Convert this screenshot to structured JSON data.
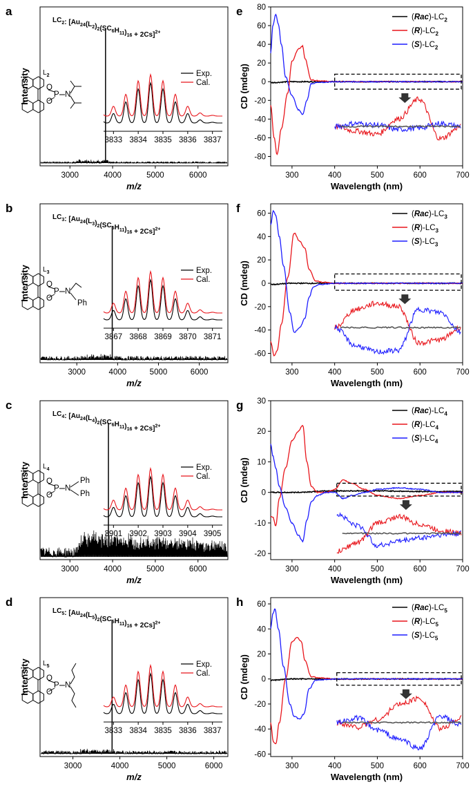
{
  "chart_data": [
    {
      "panel": "a",
      "type": "line",
      "kind": "ms",
      "title_prefix": "LC",
      "title_sub": "2",
      "title_body": ": [Au",
      "title_sub2": "24",
      "title_rest": "(L",
      "title_sub3": "2",
      "title_rest2": ")",
      "title_sub4": "2",
      "title_rest3": "(SC",
      "title_sub5": "6",
      "title_rest4": "H",
      "title_sub6": "11",
      "title_rest5": ")",
      "title_sub7": "16",
      "title_rest6": " + 2Cs]",
      "title_sup": "2+",
      "ligand_label": "L",
      "ligand_sub": "2",
      "xlabel": "m/z",
      "ylabel": "Intensity",
      "xlim": [
        2300,
        6700
      ],
      "xticks": [
        3000,
        4000,
        5000,
        6000
      ],
      "peak_x": 3834,
      "noise_level": 0.01,
      "hump": false,
      "inset_xticks": [
        3833,
        3834,
        3835,
        3836,
        3837
      ],
      "inset_xlim": [
        3832.6,
        3837.4
      ],
      "inset_legend": [
        "Exp.",
        "Cal."
      ]
    },
    {
      "panel": "b",
      "type": "line",
      "kind": "ms",
      "title_sub": "3",
      "title_sub3": "3",
      "ligand_label": "L",
      "ligand_sub": "3",
      "ligand_groups": [
        "Ph"
      ],
      "xlabel": "m/z",
      "ylabel": "Intensity",
      "xlim": [
        2100,
        6700
      ],
      "xticks": [
        3000,
        4000,
        5000,
        6000
      ],
      "peak_x": 3868,
      "noise_level": 0.025,
      "hump": false,
      "inset_xticks": [
        3867,
        3868,
        3869,
        3870,
        3871
      ],
      "inset_xlim": [
        3866.6,
        3871.4
      ],
      "inset_legend": [
        "Exp.",
        "Cal."
      ]
    },
    {
      "panel": "c",
      "type": "line",
      "kind": "ms",
      "title_sub": "4",
      "title_sub3": "4",
      "ligand_label": "L",
      "ligand_sub": "4",
      "ligand_groups": [
        "Ph",
        "Ph"
      ],
      "xlabel": "m/z",
      "ylabel": "Intensity",
      "xlim": [
        2300,
        6700
      ],
      "xticks": [
        3000,
        4000,
        5000,
        6000
      ],
      "peak_x": 3902,
      "noise_level": 0.06,
      "hump": true,
      "inset_xticks": [
        3901,
        3902,
        3903,
        3904,
        3905
      ],
      "inset_xlim": [
        3900.6,
        3905.4
      ],
      "inset_legend": [
        "Exp.",
        "Cal."
      ]
    },
    {
      "panel": "d",
      "type": "line",
      "kind": "ms",
      "title_sub": "5",
      "title_sub3": "5",
      "ligand_label": "L",
      "ligand_sub": "5",
      "xlabel": "m/z",
      "ylabel": "Intensity",
      "xlim": [
        2300,
        6300
      ],
      "xticks": [
        3000,
        4000,
        5000,
        6000
      ],
      "peak_x": 3834,
      "noise_level": 0.02,
      "hump": false,
      "inset_xticks": [
        3833,
        3834,
        3835,
        3836,
        3837
      ],
      "inset_xlim": [
        3832.6,
        3837.4
      ],
      "inset_legend": [
        "Exp.",
        "Cal."
      ]
    },
    {
      "panel": "e",
      "type": "line",
      "kind": "cd",
      "xlabel": "Wavelength (nm)",
      "ylabel": "CD (mdeg)",
      "xlim": [
        250,
        700
      ],
      "ylim": [
        -90,
        80
      ],
      "xticks": [
        300,
        400,
        500,
        600,
        700
      ],
      "yticks": [
        -80,
        -60,
        -40,
        -20,
        0,
        20,
        40,
        60,
        80
      ],
      "legend": [
        {
          "paren": "Rac",
          "suffix": "-LC",
          "sub": "2"
        },
        {
          "paren": "R",
          "suffix": "-LC",
          "sub": "2"
        },
        {
          "paren": "S",
          "suffix": "-LC",
          "sub": "2"
        }
      ],
      "series": [
        {
          "name": "(Rac)-LC2",
          "color": "#000000",
          "x": [
            250,
            300,
            400,
            500,
            600,
            700
          ],
          "y": [
            -1,
            0,
            0,
            0,
            0,
            0
          ]
        },
        {
          "name": "(R)-LC2",
          "color": "#e8141a",
          "x": [
            250,
            258,
            265,
            275,
            290,
            300,
            315,
            325,
            330,
            345,
            360,
            400,
            700
          ],
          "y": [
            -25,
            -60,
            -78,
            -50,
            -12,
            22,
            35,
            38,
            25,
            2,
            1,
            0,
            0
          ]
        },
        {
          "name": "(S)-LC2",
          "color": "#1c1cff",
          "x": [
            250,
            255,
            262,
            268,
            275,
            285,
            300,
            315,
            325,
            335,
            345,
            360,
            400,
            700
          ],
          "y": [
            30,
            60,
            72,
            62,
            40,
            5,
            -15,
            -30,
            -35,
            -20,
            -2,
            -1,
            0,
            0
          ]
        }
      ],
      "inset_box_x": [
        400,
        700
      ],
      "inset_box_y": [
        -8,
        8
      ],
      "inset_mode": "e"
    },
    {
      "panel": "f",
      "type": "line",
      "kind": "cd",
      "xlabel": "Wavelength (nm)",
      "ylabel": "CD (mdeg)",
      "xlim": [
        250,
        700
      ],
      "ylim": [
        -68,
        68
      ],
      "xticks": [
        300,
        400,
        500,
        600,
        700
      ],
      "yticks": [
        -60,
        -40,
        -20,
        0,
        20,
        40,
        60
      ],
      "legend": [
        {
          "paren": "Rac",
          "suffix": "-LC",
          "sub": "3"
        },
        {
          "paren": "R",
          "suffix": "-LC",
          "sub": "3"
        },
        {
          "paren": "S",
          "suffix": "-LC",
          "sub": "3"
        }
      ],
      "series": [
        {
          "name": "(Rac)-LC3",
          "color": "#000000",
          "x": [
            250,
            300,
            400,
            500,
            600,
            700
          ],
          "y": [
            -1,
            0,
            0,
            0,
            0,
            0
          ]
        },
        {
          "name": "(R)-LC3",
          "color": "#e8141a",
          "x": [
            250,
            258,
            265,
            275,
            290,
            305,
            318,
            330,
            340,
            355,
            370,
            400,
            700
          ],
          "y": [
            -50,
            -62,
            -58,
            -35,
            5,
            43,
            36,
            30,
            12,
            2,
            1,
            0,
            0
          ]
        },
        {
          "name": "(S)-LC3",
          "color": "#1c1cff",
          "x": [
            250,
            256,
            262,
            270,
            280,
            295,
            305,
            318,
            330,
            340,
            350,
            365,
            400,
            700
          ],
          "y": [
            50,
            62,
            58,
            40,
            15,
            -25,
            -42,
            -38,
            -30,
            -12,
            -3,
            -1,
            0,
            0
          ]
        }
      ],
      "inset_box_x": [
        400,
        700
      ],
      "inset_box_y": [
        -6,
        8
      ],
      "inset_mode": "f"
    },
    {
      "panel": "g",
      "type": "line",
      "kind": "cd",
      "xlabel": "Wavelength (nm)",
      "ylabel": "CD (mdeg)",
      "xlim": [
        250,
        700
      ],
      "ylim": [
        -22,
        30
      ],
      "xticks": [
        300,
        400,
        500,
        600,
        700
      ],
      "yticks": [
        -20,
        -10,
        0,
        10,
        20,
        30
      ],
      "legend": [
        {
          "paren": "Rac",
          "suffix": "-LC",
          "sub": "4"
        },
        {
          "paren": "R",
          "suffix": "-LC",
          "sub": "4"
        },
        {
          "paren": "S",
          "suffix": "-LC",
          "sub": "4"
        }
      ],
      "series": [
        {
          "name": "(Rac)-LC4",
          "color": "#000000",
          "x": [
            250,
            300,
            400,
            500,
            600,
            700
          ],
          "y": [
            0,
            0,
            0.5,
            0.5,
            0.3,
            0.3
          ]
        },
        {
          "name": "(R)-LC4",
          "color": "#e8141a",
          "x": [
            250,
            255,
            262,
            270,
            285,
            300,
            315,
            325,
            335,
            345,
            360,
            380,
            400,
            420,
            440,
            470,
            500,
            550,
            600,
            650,
            700
          ],
          "y": [
            -8,
            -8,
            -11,
            -2,
            8,
            17,
            20,
            22,
            10,
            2,
            0,
            0,
            1,
            4,
            3,
            1,
            -1,
            -2,
            -1,
            0,
            0
          ]
        },
        {
          "name": "(S)-LC4",
          "color": "#1c1cff",
          "x": [
            250,
            255,
            262,
            270,
            285,
            300,
            315,
            325,
            335,
            345,
            360,
            380,
            400,
            420,
            440,
            470,
            500,
            550,
            600,
            650,
            700
          ],
          "y": [
            16,
            12,
            8,
            2,
            -5,
            -10,
            -14,
            -16,
            -9,
            -3,
            -1,
            0,
            0,
            -2,
            -1,
            0,
            1,
            1.5,
            1,
            0,
            0
          ]
        }
      ],
      "inset_box_x": [
        405,
        700
      ],
      "inset_box_y": [
        -1.2,
        3
      ],
      "inset_mode": "g"
    },
    {
      "panel": "h",
      "type": "line",
      "kind": "cd",
      "xlabel": "Wavelength (nm)",
      "ylabel": "CD (mdeg)",
      "xlim": [
        250,
        700
      ],
      "ylim": [
        -62,
        65
      ],
      "xticks": [
        300,
        400,
        500,
        600,
        700
      ],
      "yticks": [
        -60,
        -40,
        -20,
        0,
        20,
        40,
        60
      ],
      "legend": [
        {
          "paren": "Rac",
          "suffix": "-LC",
          "sub": "5"
        },
        {
          "paren": "R",
          "suffix": "-LC",
          "sub": "5"
        },
        {
          "paren": "S",
          "suffix": "-LC",
          "sub": "5"
        }
      ],
      "series": [
        {
          "name": "(Rac)-LC5",
          "color": "#000000",
          "x": [
            250,
            300,
            400,
            500,
            600,
            700
          ],
          "y": [
            -1,
            0,
            0,
            0,
            0,
            0
          ]
        },
        {
          "name": "(R)-LC5",
          "color": "#e8141a",
          "x": [
            250,
            256,
            262,
            270,
            285,
            300,
            312,
            322,
            330,
            345,
            360,
            400,
            700
          ],
          "y": [
            -35,
            -50,
            -52,
            -35,
            0,
            30,
            33,
            30,
            15,
            2,
            1,
            0,
            0
          ]
        },
        {
          "name": "(S)-LC5",
          "color": "#1c1cff",
          "x": [
            250,
            255,
            260,
            268,
            280,
            295,
            305,
            318,
            328,
            340,
            355,
            400,
            700
          ],
          "y": [
            40,
            52,
            56,
            40,
            10,
            -20,
            -30,
            -32,
            -28,
            -8,
            -1,
            0,
            0
          ]
        }
      ],
      "inset_box_x": [
        405,
        700
      ],
      "inset_box_y": [
        -5,
        5
      ],
      "inset_mode": "h"
    }
  ],
  "titles": [
    {
      "lc": "LC",
      "lc_sub": "2",
      "mid": ": [Au",
      "au_sub": "24",
      "l": "(L",
      "l_sub": "2",
      "l_close": ")",
      "l_count": "2",
      "sc": "(SC",
      "c_sub": "6",
      "h": "H",
      "h_sub": "11",
      "close": ")",
      "n_sub": "16",
      "tail": " + 2Cs]",
      "sup": "2+"
    },
    {
      "lc": "LC",
      "lc_sub": "3",
      "mid": ": [Au",
      "au_sub": "24",
      "l": "(L",
      "l_sub": "3",
      "l_close": ")",
      "l_count": "2",
      "sc": "(SC",
      "c_sub": "6",
      "h": "H",
      "h_sub": "11",
      "close": ")",
      "n_sub": "16",
      "tail": " + 2Cs]",
      "sup": "2+"
    },
    {
      "lc": "LC",
      "lc_sub": "4",
      "mid": ": [Au",
      "au_sub": "24",
      "l": "(L",
      "l_sub": "4",
      "l_close": ")",
      "l_count": "2",
      "sc": "(SC",
      "c_sub": "6",
      "h": "H",
      "h_sub": "11",
      "close": ")",
      "n_sub": "16",
      "tail": " + 2Cs]",
      "sup": "2+"
    },
    {
      "lc": "LC",
      "lc_sub": "5",
      "mid": ": [Au",
      "au_sub": "24",
      "l": "(L",
      "l_sub": "5",
      "l_close": ")",
      "l_count": "2",
      "sc": "(SC",
      "c_sub": "6",
      "h": "H",
      "h_sub": "11",
      "close": ")",
      "n_sub": "16",
      "tail": " + 2Cs]",
      "sup": "2+"
    }
  ],
  "atoms": {
    "P": "P",
    "N": "N",
    "O": "O",
    "Ph": "Ph"
  },
  "colors": {
    "exp": "#000000",
    "cal": "#e8141a",
    "rac": "#000000",
    "r": "#e8141a",
    "s": "#1c1cff",
    "rac_inset": "#555555"
  }
}
